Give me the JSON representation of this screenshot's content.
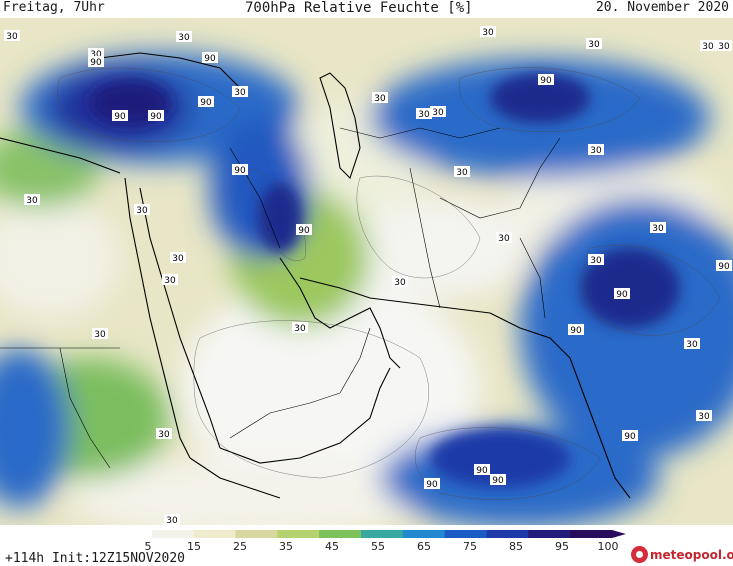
{
  "header": {
    "left": "Freitag, 7Uhr",
    "title": "700hPa Relative Feuchte [%]",
    "right": "20. November 2020"
  },
  "footer": {
    "run": "+114h Init:12Z15NOV2020",
    "logo_text": "meteopool.org"
  },
  "colorbar": {
    "ticks": [
      "5",
      "15",
      "25",
      "35",
      "45",
      "55",
      "65",
      "75",
      "85",
      "95",
      "100"
    ],
    "colors": [
      "#ffffff",
      "#f2f2ea",
      "#eeeccc",
      "#d8d89e",
      "#b4d26e",
      "#7cc25a",
      "#38a8a0",
      "#2288d0",
      "#1a5cc4",
      "#1e3aa8",
      "#231c7a",
      "#2a0c5c"
    ]
  },
  "map_labels": {
    "contour_30": "30",
    "contour_90": "90"
  },
  "colors": {
    "border": "#000000",
    "contour": "#4a4a4a"
  }
}
